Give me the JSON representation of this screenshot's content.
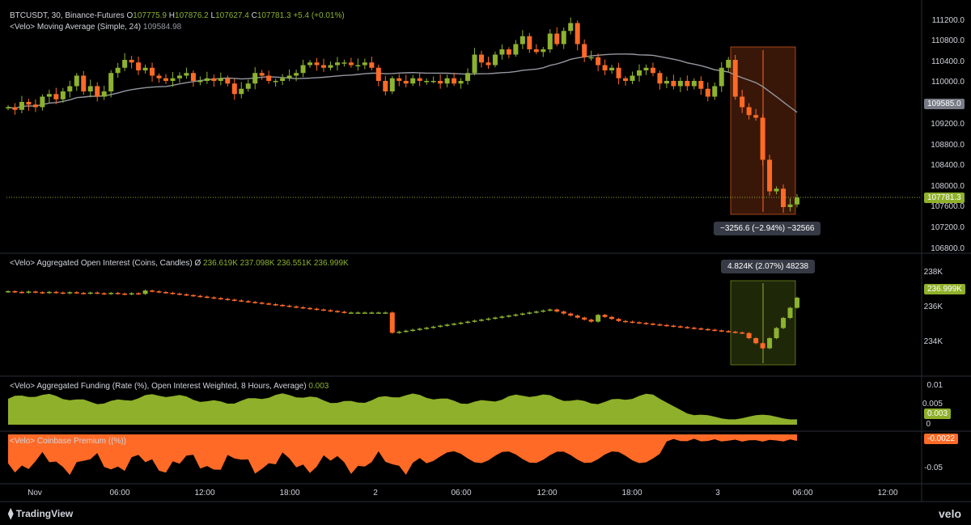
{
  "header": {
    "symbol": "BTCUSDT, 30, Binance-Futures",
    "o_label": "O",
    "o_value": "107775.9",
    "h_label": "H",
    "h_value": "107876.2",
    "l_label": "L",
    "l_value": "107627.4",
    "c_label": "C",
    "c_value": "107781.3",
    "change": "+5.4 (+0.01%)",
    "ma_label": "<Velo> Moving Average (Simple, 24)",
    "ma_value": "109584.98"
  },
  "oi_pane": {
    "label": "<Velo> Aggregated Open Interest (Coins, Candles)",
    "symbol": "Ø",
    "v1": "236.619K",
    "v2": "237.098K",
    "v3": "236.551K",
    "v4": "236.999K"
  },
  "funding_pane": {
    "label": "<Velo> Aggregated Funding (Rate (%), Open Interest Weighted, 8 Hours, Average)",
    "value": "0.003"
  },
  "premium_pane": {
    "label": "<Velo> Coinbase Premium ((%))"
  },
  "price_axis": [
    "111200.0",
    "110800.0",
    "110400.0",
    "110000.0",
    "109200.0",
    "108800.0",
    "108400.0",
    "108000.0",
    "107600.0",
    "107200.0",
    "106800.0"
  ],
  "price_tags": {
    "ma": "109585.0",
    "last": "107781.3"
  },
  "oi_axis": [
    "238K",
    "236K",
    "234K"
  ],
  "oi_tag": "236.999K",
  "funding_axis": [
    "0.01",
    "0.005",
    "0"
  ],
  "funding_tag": "0.003",
  "premium_axis": [
    "-0.05"
  ],
  "premium_tag": "-0.0022",
  "time_axis": [
    "Nov",
    "06:00",
    "12:00",
    "18:00",
    "2",
    "06:00",
    "12:00",
    "18:00",
    "3",
    "06:00",
    "12:00"
  ],
  "measure_price": "−3256.6 (−2.94%) −32566",
  "measure_oi": "4.824K (2.07%) 48238",
  "footer": {
    "brand": "TradingView",
    "watermark": "velo"
  },
  "colors": {
    "up": "#8cb22f",
    "down": "#ff6a26",
    "ma": "#9598a1",
    "funding": "#8fb02a",
    "premium": "#ff6a26",
    "price_tag": "#8fb02a",
    "ma_tag": "#787b86"
  },
  "chart_data": {
    "type": "candlestick",
    "price_ylim": [
      106800,
      111200
    ],
    "price_close": [
      109500,
      109450,
      109600,
      109550,
      109500,
      109700,
      109750,
      109650,
      109800,
      109900,
      110100,
      109800,
      109900,
      109700,
      109800,
      110150,
      110250,
      110400,
      110350,
      110200,
      110250,
      110100,
      110050,
      110000,
      110050,
      110100,
      110150,
      110000,
      110000,
      110050,
      110000,
      110050,
      109950,
      109750,
      109850,
      109950,
      110150,
      110100,
      110000,
      110000,
      110050,
      110100,
      110150,
      110300,
      110350,
      110300,
      110250,
      110300,
      110350,
      110350,
      110300,
      110300,
      110350,
      110250,
      110000,
      109800,
      110050,
      110000,
      109950,
      110050,
      110000,
      110000,
      110000,
      109950,
      110050,
      109950,
      110000,
      110150,
      110500,
      110350,
      110300,
      110500,
      110600,
      110500,
      110700,
      110850,
      110600,
      110550,
      110600,
      110900,
      110700,
      110950,
      111100,
      110700,
      110450,
      110450,
      110300,
      110200,
      110250,
      110050,
      110000,
      110100,
      110200,
      110250,
      110150,
      109950,
      110000,
      109900,
      110000,
      109900,
      110000,
      109850,
      109700,
      109900,
      110250,
      110400,
      109700,
      109500,
      109350,
      109300,
      108500,
      107900,
      107950,
      107600,
      107650,
      107781
    ],
    "oi_ylim": [
      233000,
      239000
    ],
    "funding_ylim": [
      0,
      0.0125
    ],
    "premium_ylim": [
      -0.075,
      0.003
    ]
  }
}
